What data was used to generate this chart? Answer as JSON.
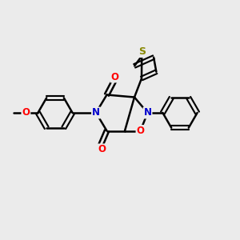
{
  "bg_color": "#ebebeb",
  "line_color": "#000000",
  "bond_width": 1.8,
  "atom_colors": {
    "N": "#0000cc",
    "O": "#ff0000",
    "S": "#888800",
    "C": "#000000"
  },
  "font_size": 8.5
}
